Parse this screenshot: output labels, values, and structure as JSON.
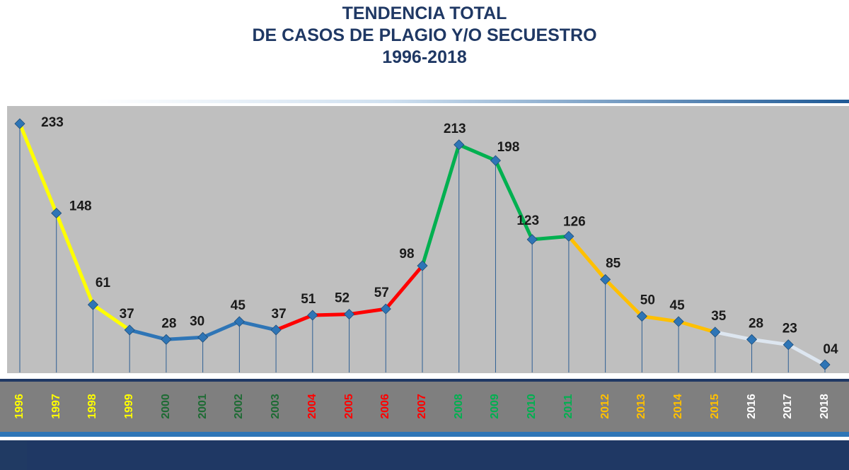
{
  "title": {
    "line1": "TENDENCIA TOTAL",
    "line2": "DE CASOS DE PLAGIO Y/O SECUESTRO",
    "line3": "1996-2018"
  },
  "colors": {
    "plot_background": "#bfbfbf",
    "year_band": "#7f7f7f",
    "title": "#1f3864",
    "marker": "#2e75b6"
  },
  "chart_data": {
    "type": "line",
    "title": "TENDENCIA TOTAL DE CASOS DE PLAGIO Y/O SECUESTRO 1996-2018",
    "xlabel": "",
    "ylabel": "",
    "ylim": [
      0,
      240
    ],
    "categories": [
      "1996",
      "1997",
      "1998",
      "1999",
      "2000",
      "2001",
      "2002",
      "2003",
      "2004",
      "2005",
      "2006",
      "2007",
      "2008",
      "2009",
      "2010",
      "2011",
      "2012",
      "2013",
      "2014",
      "2015",
      "2016",
      "2017",
      "2018"
    ],
    "values": [
      233,
      148,
      61,
      37,
      28,
      30,
      45,
      37,
      51,
      52,
      57,
      98,
      213,
      198,
      123,
      126,
      85,
      50,
      45,
      35,
      28,
      23,
      4
    ],
    "value_labels": [
      "233",
      "148",
      "61",
      "37",
      "28",
      "30",
      "45",
      "37",
      "51",
      "52",
      "57",
      "98",
      "213",
      "198",
      "123",
      "126",
      "85",
      "50",
      "45",
      "35",
      "28",
      "23",
      "04"
    ],
    "segments": [
      {
        "from": 0,
        "to": 3,
        "color": "#ffff00"
      },
      {
        "from": 3,
        "to": 7,
        "color": "#2e75b6"
      },
      {
        "from": 7,
        "to": 11,
        "color": "#ff0000"
      },
      {
        "from": 11,
        "to": 15,
        "color": "#00b050"
      },
      {
        "from": 15,
        "to": 19,
        "color": "#ffc000"
      },
      {
        "from": 19,
        "to": 22,
        "color": "#dde6f0"
      }
    ],
    "year_label_colors": [
      "#ffff00",
      "#ffff00",
      "#ffff00",
      "#ffff00",
      "#1e6b34",
      "#1e6b34",
      "#1e6b34",
      "#1e6b34",
      "#ff0000",
      "#ff0000",
      "#ff0000",
      "#ff0000",
      "#00b050",
      "#00b050",
      "#00b050",
      "#00b050",
      "#ffc000",
      "#ffc000",
      "#ffc000",
      "#ffc000",
      "#ffffff",
      "#ffffff",
      "#ffffff"
    ]
  }
}
